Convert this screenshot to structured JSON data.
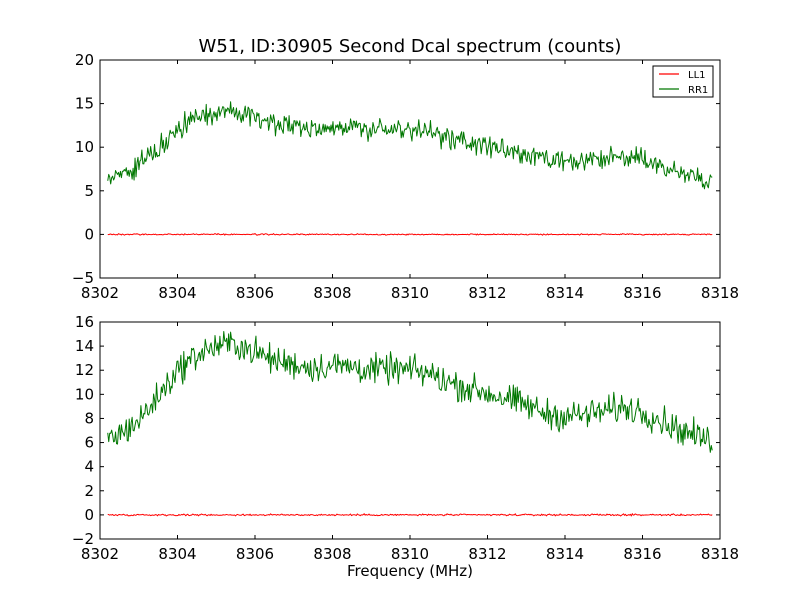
{
  "chart_data": [
    {
      "type": "line",
      "title": "W51, ID:30905 Second Dcal spectrum (counts)",
      "xlabel": "",
      "ylabel": "",
      "xlim": [
        8302,
        8318
      ],
      "ylim": [
        -5,
        20
      ],
      "xticks": [
        "8302",
        "8304",
        "8306",
        "8308",
        "8310",
        "8312",
        "8314",
        "8316",
        "8318"
      ],
      "yticks": [
        "−5",
        "0",
        "5",
        "10",
        "15",
        "20"
      ],
      "legend": "top-right",
      "grid": false,
      "series": [
        {
          "name": "LL1",
          "color": "#ff0000",
          "x": [
            8302.2,
            8304,
            8306,
            8308,
            8310,
            8312,
            8314,
            8316,
            8317.8
          ],
          "values": [
            0,
            0,
            0,
            0,
            0,
            0,
            0,
            0,
            0
          ]
        },
        {
          "name": "RR1",
          "color": "#007700",
          "x": [
            8302.2,
            8302.5,
            8303,
            8303.5,
            8304,
            8304.5,
            8305,
            8305.5,
            8306,
            8306.5,
            8307,
            8307.5,
            8308,
            8308.5,
            8309,
            8309.5,
            8310,
            8310.5,
            8311,
            8311.5,
            8312,
            8312.5,
            8313,
            8313.5,
            8314,
            8314.5,
            8315,
            8315.5,
            8316,
            8316.5,
            8317,
            8317.5,
            8317.8
          ],
          "values": [
            6.3,
            6.7,
            7.8,
            9.8,
            12.0,
            13.3,
            14.0,
            14.2,
            13.5,
            12.8,
            12.5,
            12.2,
            12.4,
            12.3,
            12.0,
            12.1,
            12.0,
            11.7,
            11.0,
            10.5,
            10.1,
            9.6,
            9.1,
            8.4,
            8.2,
            8.3,
            8.6,
            8.9,
            8.6,
            7.8,
            7.0,
            6.4,
            6.1
          ]
        }
      ]
    },
    {
      "type": "line",
      "title": "",
      "xlabel": "Frequency (MHz)",
      "ylabel": "",
      "xlim": [
        8302,
        8318
      ],
      "ylim": [
        -2,
        16
      ],
      "xticks": [
        "8302",
        "8304",
        "8306",
        "8308",
        "8310",
        "8312",
        "8314",
        "8316",
        "8318"
      ],
      "yticks": [
        "−2",
        "0",
        "2",
        "4",
        "6",
        "8",
        "10",
        "12",
        "14",
        "16"
      ],
      "grid": false,
      "series": [
        {
          "color": "#ff0000",
          "x": [
            8302.2,
            8304,
            8306,
            8308,
            8310,
            8312,
            8314,
            8316,
            8317.8
          ],
          "values": [
            0,
            0,
            0,
            0,
            0,
            0,
            0,
            0,
            0
          ]
        },
        {
          "color": "#007700",
          "x": [
            8302.2,
            8302.5,
            8303,
            8303.5,
            8304,
            8304.5,
            8305,
            8305.5,
            8306,
            8306.5,
            8307,
            8307.5,
            8308,
            8308.5,
            8309,
            8309.5,
            8310,
            8310.5,
            8311,
            8311.5,
            8312,
            8312.5,
            8313,
            8313.5,
            8314,
            8314.5,
            8315,
            8315.5,
            8316,
            8316.5,
            8317,
            8317.5,
            8317.8
          ],
          "values": [
            6.3,
            6.7,
            7.8,
            9.8,
            12.0,
            13.3,
            14.0,
            14.2,
            13.5,
            12.8,
            12.5,
            12.2,
            12.4,
            12.3,
            12.0,
            12.1,
            12.0,
            11.7,
            11.0,
            10.5,
            10.1,
            9.6,
            9.1,
            8.4,
            8.2,
            8.3,
            8.6,
            8.9,
            8.6,
            7.8,
            7.0,
            6.4,
            6.1
          ]
        }
      ]
    }
  ]
}
